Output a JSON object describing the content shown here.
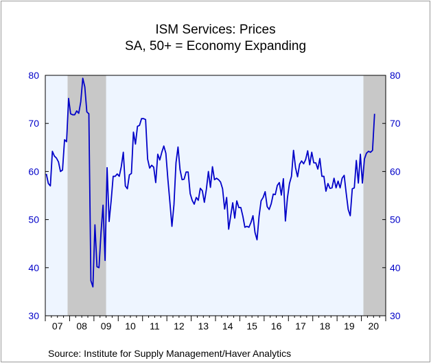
{
  "chart_data": {
    "type": "line",
    "title": "ISM Services: Prices",
    "subtitle": "SA, 50+ = Economy Expanding",
    "ylim": [
      30,
      80
    ],
    "y_ticks": [
      30,
      40,
      50,
      60,
      70,
      80
    ],
    "x_tick_labels": [
      "07",
      "08",
      "09",
      "10",
      "11",
      "12",
      "13",
      "14",
      "15",
      "16",
      "17",
      "18",
      "19",
      "20"
    ],
    "x_start": "2007-01",
    "grid": false,
    "shaded_periods": [
      {
        "start": "2007-12",
        "end": "2009-06"
      },
      {
        "start": "2020-02",
        "end": "2020-12"
      }
    ],
    "series": [
      {
        "name": "",
        "color": "#0000c8",
        "values": [
          59.5,
          57.5,
          57.0,
          64.2,
          63.2,
          62.8,
          62.0,
          60.0,
          60.3,
          66.6,
          66.2,
          75.2,
          72.0,
          71.8,
          71.8,
          72.6,
          72.1,
          74.5,
          79.4,
          77.6,
          72.4,
          72.0,
          37.3,
          36.0,
          48.9,
          40.2,
          40.0,
          47.3,
          53.0,
          41.5,
          60.8,
          49.6,
          53.9,
          59.0,
          59.0,
          59.5,
          59.0,
          61.0,
          64.0,
          57.0,
          56.4,
          59.3,
          59.6,
          68.2,
          65.7,
          69.4,
          69.6,
          71.0,
          71.0,
          70.8,
          62.6,
          60.7,
          61.3,
          60.9,
          57.7,
          63.6,
          62.4,
          64.0,
          65.3,
          63.8,
          58.4,
          53.6,
          48.6,
          53.1,
          61.8,
          65.1,
          60.4,
          58.3,
          58.4,
          59.9,
          59.9,
          55.4,
          54.0,
          53.2,
          54.6,
          54.0,
          56.5,
          56.0,
          53.6,
          56.3,
          60.0,
          56.7,
          61.0,
          58.3,
          58.6,
          58.3,
          57.8,
          56.4,
          52.2,
          54.6,
          48.0,
          50.8,
          53.5,
          50.3,
          53.9,
          52.5,
          52.5,
          50.7,
          48.4,
          48.6,
          48.4,
          49.4,
          50.8,
          47.3,
          45.8,
          50.7,
          53.9,
          54.6,
          55.8,
          52.7,
          52.1,
          53.3,
          55.3,
          55.2,
          57.1,
          57.7,
          55.1,
          58.5,
          49.7,
          54.5,
          57.5,
          59.0,
          64.4,
          60.8,
          58.9,
          61.5,
          62.2,
          61.6,
          62.5,
          64.3,
          61.4,
          64.0,
          61.8,
          61.8,
          60.5,
          62.7,
          59.0,
          59.0,
          55.9,
          57.5,
          56.5,
          56.6,
          58.6,
          56.6,
          58.0,
          56.6,
          58.6,
          59.2,
          55.5,
          52.1,
          50.8,
          56.4,
          56.6,
          62.3,
          57.6,
          63.6,
          57.6,
          62.6,
          63.8,
          64.2,
          64.0,
          64.4,
          72.0
        ]
      }
    ]
  },
  "source": "Source:  Institute for Supply Management/Haver Analytics"
}
